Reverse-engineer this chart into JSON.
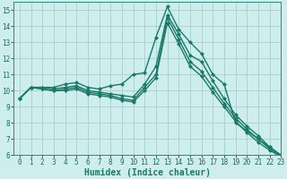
{
  "bg_color": "#ceeeed",
  "grid_color": "#aad4d3",
  "line_color": "#1a7a6a",
  "marker_color": "#1a7a6a",
  "xlabel": "Humidex (Indice chaleur)",
  "xlabel_fontsize": 7,
  "xlim": [
    -0.5,
    23
  ],
  "ylim": [
    6,
    15.5
  ],
  "yticks": [
    6,
    7,
    8,
    9,
    10,
    11,
    12,
    13,
    14,
    15
  ],
  "xticks": [
    0,
    1,
    2,
    3,
    4,
    5,
    6,
    7,
    8,
    9,
    10,
    11,
    12,
    13,
    14,
    15,
    16,
    17,
    18,
    19,
    20,
    21,
    22,
    23
  ],
  "series": [
    [
      9.5,
      10.2,
      10.2,
      10.2,
      10.4,
      10.5,
      10.2,
      10.1,
      10.3,
      10.4,
      11.0,
      11.1,
      13.3,
      15.2,
      13.8,
      13.0,
      12.3,
      11.0,
      10.4,
      8.0,
      7.5,
      7.0,
      6.5,
      6.0
    ],
    [
      9.5,
      10.2,
      10.2,
      10.1,
      10.2,
      10.3,
      10.0,
      9.9,
      9.8,
      9.7,
      9.6,
      10.4,
      11.5,
      14.7,
      13.5,
      12.2,
      11.8,
      10.6,
      9.5,
      8.5,
      7.8,
      7.2,
      6.5,
      6.0
    ],
    [
      9.5,
      10.2,
      10.1,
      10.0,
      10.1,
      10.2,
      9.9,
      9.8,
      9.7,
      9.5,
      9.4,
      10.2,
      11.0,
      14.5,
      13.2,
      11.8,
      11.2,
      10.2,
      9.2,
      8.3,
      7.6,
      7.0,
      6.4,
      5.9
    ],
    [
      9.5,
      10.2,
      10.1,
      10.0,
      10.0,
      10.1,
      9.8,
      9.7,
      9.6,
      9.4,
      9.3,
      10.0,
      10.8,
      14.2,
      12.9,
      11.5,
      10.9,
      9.9,
      9.0,
      8.1,
      7.4,
      6.8,
      6.3,
      5.9
    ]
  ]
}
